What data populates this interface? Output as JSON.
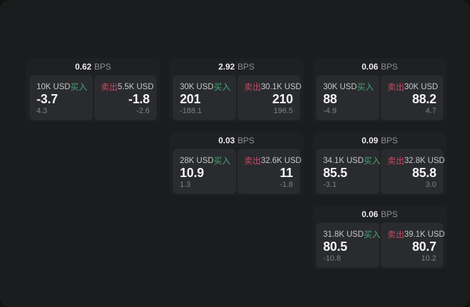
{
  "labels": {
    "bps_unit": "BPS",
    "buy": "买入",
    "sell": "卖出"
  },
  "colors": {
    "buy": "#43a873",
    "sell": "#c94a64",
    "background": "#131314",
    "panel": "#1b1c1d",
    "card": "#1f2023",
    "subpanel": "#2a2b2e"
  },
  "cards": [
    {
      "bps": "0.62",
      "buy": {
        "size": "10K USD",
        "value": "-3.7",
        "sub": "4.3"
      },
      "sell": {
        "size": "5.5K USD",
        "value": "-1.8",
        "sub": "-2.6"
      }
    },
    {
      "bps": "2.92",
      "buy": {
        "size": "30K USD",
        "value": "201",
        "sub": "-188.1"
      },
      "sell": {
        "size": "30.1K USD",
        "value": "210",
        "sub": "196.5"
      }
    },
    {
      "bps": "0.06",
      "buy": {
        "size": "30K USD",
        "value": "88",
        "sub": "-4.9"
      },
      "sell": {
        "size": "30K USD",
        "value": "88.2",
        "sub": "4.7"
      }
    },
    {
      "bps": "0.03",
      "buy": {
        "size": "28K USD",
        "value": "10.9",
        "sub": "1.3"
      },
      "sell": {
        "size": "32.6K USD",
        "value": "11",
        "sub": "-1.8"
      }
    },
    {
      "bps": "0.09",
      "buy": {
        "size": "34.1K USD",
        "value": "85.5",
        "sub": "-3.1"
      },
      "sell": {
        "size": "32.8K USD",
        "value": "85.8",
        "sub": "3.0"
      }
    },
    {
      "bps": "0.06",
      "buy": {
        "size": "31.8K USD",
        "value": "80.5",
        "sub": "-10.8"
      },
      "sell": {
        "size": "39.1K USD",
        "value": "80.7",
        "sub": "10.2"
      }
    }
  ]
}
